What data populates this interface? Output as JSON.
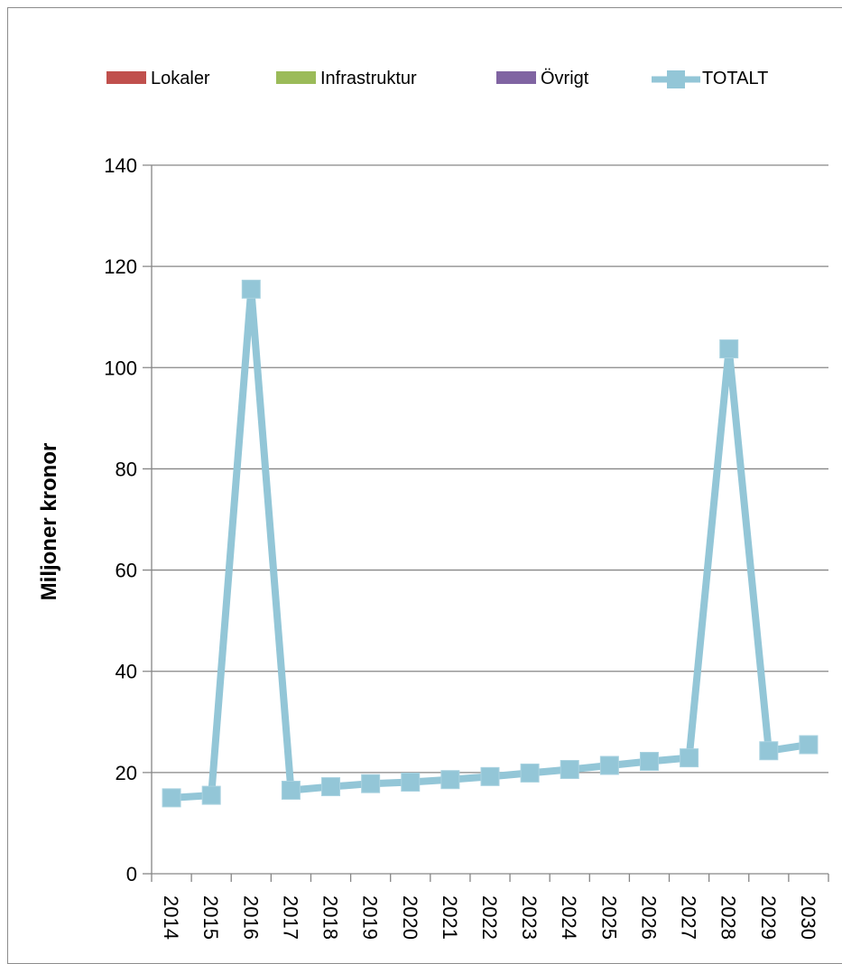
{
  "chart_data": {
    "type": "line",
    "title": "",
    "xlabel": "",
    "ylabel": "Miljoner kronor",
    "ylim": [
      0,
      140
    ],
    "yticks": [
      0,
      20,
      40,
      60,
      80,
      100,
      120,
      140
    ],
    "grid": true,
    "legend_position": "top",
    "categories": [
      "2014",
      "2015",
      "2016",
      "2017",
      "2018",
      "2019",
      "2020",
      "2021",
      "2022",
      "2023",
      "2024",
      "2025",
      "2026",
      "2027",
      "2028",
      "2029",
      "2030"
    ],
    "legend": [
      {
        "name": "Lokaler",
        "color": "#C0504D",
        "kind": "bar"
      },
      {
        "name": "Infrastruktur",
        "color": "#9BBB59",
        "kind": "bar"
      },
      {
        "name": "Övrigt",
        "color": "#8064A2",
        "kind": "bar"
      },
      {
        "name": "TOTALT",
        "color": "#93C6D7",
        "kind": "line"
      }
    ],
    "series": [
      {
        "name": "TOTALT",
        "color": "#93C6D7",
        "values": [
          15,
          15.5,
          115.5,
          16.5,
          17.2,
          17.8,
          18.1,
          18.6,
          19.2,
          19.9,
          20.6,
          21.4,
          22.2,
          22.9,
          103.7,
          24.3,
          25.5
        ]
      }
    ]
  }
}
